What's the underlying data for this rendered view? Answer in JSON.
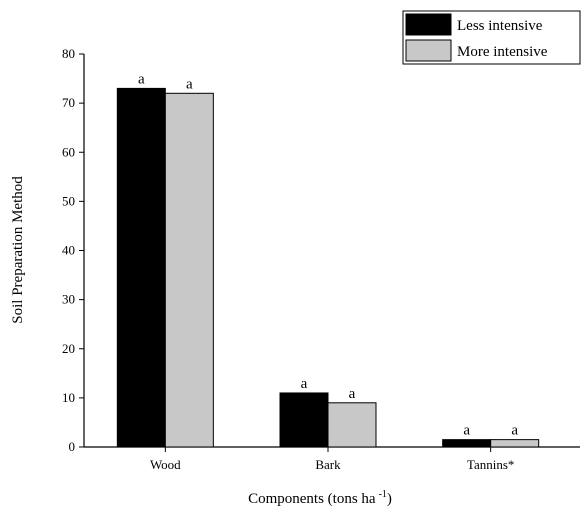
{
  "chart_data": {
    "type": "bar",
    "title": "",
    "xlabel": "Components (tons ha",
    "xlabel_sup": "-1",
    "xlabel_close": ")",
    "ylabel": "Soil Preparation Method",
    "ylim": [
      0,
      80
    ],
    "yticks": [
      "0",
      "10",
      "20",
      "30",
      "40",
      "50",
      "60",
      "70",
      "80"
    ],
    "categories": [
      "Wood",
      "Bark",
      "Tannins*"
    ],
    "series": [
      {
        "name": "Less intensive",
        "color": "#000000",
        "values": [
          73,
          11,
          1.5
        ],
        "labels": [
          "a",
          "a",
          "a"
        ]
      },
      {
        "name": "More intensive",
        "color": "#c8c8c8",
        "values": [
          72,
          9,
          1.5
        ],
        "labels": [
          "a",
          "a",
          "a"
        ]
      }
    ],
    "legend_position": "top-right",
    "grid": false
  }
}
